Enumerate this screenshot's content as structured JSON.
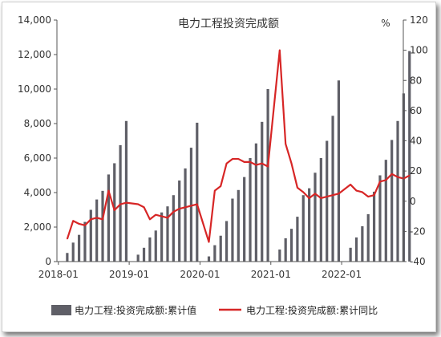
{
  "chart_data": {
    "type": "bar+line",
    "title": "电力工程投资完成额",
    "y2_unit": "%",
    "x_tick_labels": [
      "2018-01",
      "2019-01",
      "2020-01",
      "2021-01",
      "2022-01"
    ],
    "x_tick_months": [
      "2018-01",
      "2019-01",
      "2020-01",
      "2021-01",
      "2022-01"
    ],
    "left_axis": {
      "min": 0,
      "max": 14000,
      "ticks": [
        "0",
        "2,000",
        "4,000",
        "6,000",
        "8,000",
        "10,000",
        "12,000",
        "14,000"
      ]
    },
    "right_axis": {
      "min": -40,
      "max": 120,
      "ticks": [
        "-40",
        "-20",
        "0",
        "20",
        "40",
        "60",
        "80",
        "100",
        "120"
      ]
    },
    "series": [
      {
        "name": "电力工程:投资完成额:累计值",
        "type": "bar",
        "axis": "left",
        "color": "#5f5f67",
        "points": [
          [
            "2018-02",
            500
          ],
          [
            "2018-03",
            1100
          ],
          [
            "2018-04",
            1550
          ],
          [
            "2018-05",
            2300
          ],
          [
            "2018-06",
            3000
          ],
          [
            "2018-07",
            3600
          ],
          [
            "2018-08",
            4100
          ],
          [
            "2018-09",
            5050
          ],
          [
            "2018-10",
            5700
          ],
          [
            "2018-11",
            6750
          ],
          [
            "2018-12",
            8150
          ],
          [
            "2019-02",
            400
          ],
          [
            "2019-03",
            800
          ],
          [
            "2019-04",
            1400
          ],
          [
            "2019-05",
            1800
          ],
          [
            "2019-06",
            2850
          ],
          [
            "2019-07",
            3200
          ],
          [
            "2019-08",
            3850
          ],
          [
            "2019-09",
            4700
          ],
          [
            "2019-10",
            5400
          ],
          [
            "2019-11",
            6600
          ],
          [
            "2019-12",
            8050
          ],
          [
            "2020-02",
            300
          ],
          [
            "2020-03",
            950
          ],
          [
            "2020-04",
            1500
          ],
          [
            "2020-05",
            2350
          ],
          [
            "2020-06",
            3650
          ],
          [
            "2020-07",
            4150
          ],
          [
            "2020-08",
            4900
          ],
          [
            "2020-09",
            6000
          ],
          [
            "2020-10",
            6850
          ],
          [
            "2020-11",
            8100
          ],
          [
            "2020-12",
            10000
          ],
          [
            "2021-02",
            700
          ],
          [
            "2021-03",
            1350
          ],
          [
            "2021-04",
            1900
          ],
          [
            "2021-05",
            2600
          ],
          [
            "2021-06",
            3850
          ],
          [
            "2021-07",
            4250
          ],
          [
            "2021-08",
            5150
          ],
          [
            "2021-09",
            6000
          ],
          [
            "2021-10",
            7000
          ],
          [
            "2021-11",
            8450
          ],
          [
            "2021-12",
            10500
          ],
          [
            "2022-02",
            800
          ],
          [
            "2022-03",
            1400
          ],
          [
            "2022-04",
            2050
          ],
          [
            "2022-05",
            2750
          ],
          [
            "2022-06",
            4050
          ],
          [
            "2022-07",
            5000
          ],
          [
            "2022-08",
            5900
          ],
          [
            "2022-09",
            7050
          ],
          [
            "2022-10",
            8150
          ],
          [
            "2022-11",
            9750
          ],
          [
            "2022-12",
            12200
          ]
        ]
      },
      {
        "name": "电力工程:投资完成额:累计同比",
        "type": "line",
        "axis": "right",
        "color": "#d72626",
        "points": [
          [
            "2018-02",
            -25
          ],
          [
            "2018-03",
            -13
          ],
          [
            "2018-04",
            -15
          ],
          [
            "2018-05",
            -16
          ],
          [
            "2018-06",
            -12
          ],
          [
            "2018-07",
            -11
          ],
          [
            "2018-08",
            -12
          ],
          [
            "2018-09",
            7
          ],
          [
            "2018-10",
            -6
          ],
          [
            "2018-11",
            -2
          ],
          [
            "2018-12",
            -1
          ],
          [
            "2019-02",
            -2
          ],
          [
            "2019-03",
            -4
          ],
          [
            "2019-04",
            -12
          ],
          [
            "2019-05",
            -9
          ],
          [
            "2019-06",
            -10
          ],
          [
            "2019-07",
            -11
          ],
          [
            "2019-08",
            -7
          ],
          [
            "2019-09",
            -5
          ],
          [
            "2019-10",
            -4
          ],
          [
            "2019-11",
            -3
          ],
          [
            "2019-12",
            -2
          ],
          [
            "2020-02",
            -27
          ],
          [
            "2020-03",
            7
          ],
          [
            "2020-04",
            10
          ],
          [
            "2020-05",
            25
          ],
          [
            "2020-06",
            28
          ],
          [
            "2020-07",
            28
          ],
          [
            "2020-08",
            26
          ],
          [
            "2020-09",
            26
          ],
          [
            "2020-10",
            24
          ],
          [
            "2020-11",
            25
          ],
          [
            "2020-12",
            23
          ],
          [
            "2021-02",
            100
          ],
          [
            "2021-03",
            38
          ],
          [
            "2021-04",
            25
          ],
          [
            "2021-05",
            9
          ],
          [
            "2021-06",
            6
          ],
          [
            "2021-07",
            2
          ],
          [
            "2021-08",
            5
          ],
          [
            "2021-09",
            2
          ],
          [
            "2021-10",
            3
          ],
          [
            "2021-11",
            4
          ],
          [
            "2021-12",
            5
          ],
          [
            "2022-02",
            11
          ],
          [
            "2022-03",
            7
          ],
          [
            "2022-04",
            6
          ],
          [
            "2022-05",
            3
          ],
          [
            "2022-06",
            4
          ],
          [
            "2022-07",
            13
          ],
          [
            "2022-08",
            14
          ],
          [
            "2022-09",
            18
          ],
          [
            "2022-10",
            16
          ],
          [
            "2022-11",
            15
          ],
          [
            "2022-12",
            17
          ]
        ]
      }
    ],
    "legend": {
      "position": "bottom"
    },
    "grid": false
  }
}
